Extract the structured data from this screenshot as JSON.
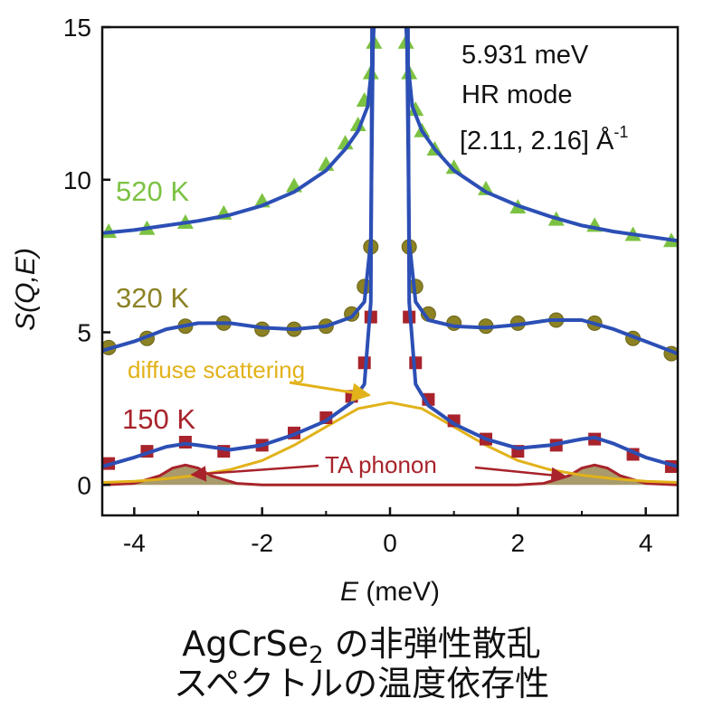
{
  "caption": {
    "line1_prefix": "AgCrSe",
    "line1_sub": "2",
    "line1_suffix": " の非弾性散乱",
    "line2": "スペクトルの温度依存性"
  },
  "chart_data": {
    "type": "scatter",
    "xlabel_italic": "E",
    "xlabel_unit": " (meV)",
    "ylabel": "S(Q,E)",
    "xlim": [
      -4.5,
      4.5
    ],
    "ylim": [
      -1,
      15
    ],
    "xticks": [
      -4,
      -2,
      0,
      2,
      4
    ],
    "yticks": [
      0,
      5,
      10,
      15
    ],
    "annotations": {
      "energy": "5.931 meV",
      "mode": "HR mode",
      "q_range": "[2.11, 2.16] Å",
      "q_exp": "-1",
      "diffuse": "diffuse scattering",
      "ta": "TA phonon"
    },
    "series": [
      {
        "name": "520 K",
        "color": "#7cc242",
        "marker": "triangle",
        "x": [
          -4.4,
          -3.8,
          -3.2,
          -2.6,
          -2.0,
          -1.5,
          -1.0,
          -0.7,
          -0.5,
          -0.4,
          -0.3,
          -0.25,
          0.25,
          0.3,
          0.4,
          0.5,
          0.7,
          1.0,
          1.5,
          2.0,
          2.6,
          3.2,
          3.8,
          4.4
        ],
        "y": [
          8.3,
          8.4,
          8.6,
          8.9,
          9.3,
          9.8,
          10.5,
          11.2,
          11.8,
          12.6,
          13.5,
          14.5,
          14.5,
          13.5,
          12.3,
          11.6,
          11.0,
          10.4,
          9.7,
          9.1,
          8.7,
          8.5,
          8.2,
          8.0
        ]
      },
      {
        "name": "320 K",
        "color": "#8c8224",
        "marker": "circle",
        "x": [
          -4.4,
          -3.8,
          -3.2,
          -2.6,
          -2.0,
          -1.5,
          -1.0,
          -0.6,
          -0.4,
          -0.3,
          0.3,
          0.4,
          0.6,
          1.0,
          1.5,
          2.0,
          2.6,
          3.2,
          3.8,
          4.4
        ],
        "y": [
          4.5,
          4.8,
          5.2,
          5.3,
          5.1,
          5.1,
          5.2,
          5.6,
          6.5,
          7.8,
          7.8,
          6.5,
          5.6,
          5.3,
          5.2,
          5.3,
          5.4,
          5.3,
          4.8,
          4.3
        ]
      },
      {
        "name": "150 K",
        "color": "#a8232b",
        "marker": "square",
        "x": [
          -4.4,
          -3.8,
          -3.2,
          -2.6,
          -2.0,
          -1.5,
          -1.0,
          -0.6,
          -0.4,
          -0.3,
          0.3,
          0.4,
          0.6,
          1.0,
          1.5,
          2.0,
          2.6,
          3.2,
          3.8,
          4.4
        ],
        "y": [
          0.7,
          1.1,
          1.4,
          1.1,
          1.3,
          1.7,
          2.2,
          2.9,
          4.0,
          5.5,
          5.5,
          4.0,
          2.8,
          2.1,
          1.5,
          1.1,
          1.3,
          1.5,
          1.0,
          0.6
        ]
      }
    ],
    "fits": [
      {
        "name": "520 K fit",
        "color": "#2c4fb5",
        "x": [
          -4.5,
          -4.0,
          -3.5,
          -3.0,
          -2.5,
          -2.0,
          -1.5,
          -1.0,
          -0.7,
          -0.5,
          -0.35,
          -0.28,
          -0.24,
          0.24,
          0.28,
          0.35,
          0.5,
          0.7,
          1.0,
          1.5,
          2.0,
          2.5,
          3.0,
          3.5,
          4.0,
          4.5
        ],
        "y": [
          8.25,
          8.35,
          8.5,
          8.65,
          8.85,
          9.15,
          9.6,
          10.3,
          11.0,
          11.6,
          12.4,
          13.8,
          15.5,
          15.5,
          13.8,
          12.4,
          11.6,
          11.0,
          10.3,
          9.6,
          9.15,
          8.8,
          8.5,
          8.3,
          8.15,
          8.0
        ]
      },
      {
        "name": "320 K fit",
        "color": "#2c4fb5",
        "x": [
          -4.5,
          -4.0,
          -3.5,
          -3.0,
          -2.5,
          -2.0,
          -1.5,
          -1.0,
          -0.6,
          -0.4,
          -0.3,
          -0.26,
          0.26,
          0.3,
          0.4,
          0.6,
          1.0,
          1.5,
          2.0,
          2.5,
          3.0,
          3.5,
          4.0,
          4.5
        ],
        "y": [
          4.4,
          4.7,
          5.1,
          5.3,
          5.3,
          5.15,
          5.1,
          5.2,
          5.5,
          6.0,
          8.0,
          15.5,
          15.5,
          8.0,
          6.0,
          5.4,
          5.2,
          5.15,
          5.25,
          5.4,
          5.4,
          5.1,
          4.7,
          4.3
        ]
      },
      {
        "name": "150 K fit",
        "color": "#2c4fb5",
        "x": [
          -4.5,
          -4.0,
          -3.5,
          -3.2,
          -3.0,
          -2.5,
          -2.0,
          -1.5,
          -1.0,
          -0.6,
          -0.4,
          -0.3,
          -0.28,
          0.28,
          0.3,
          0.4,
          0.6,
          1.0,
          1.5,
          2.0,
          2.5,
          3.0,
          3.2,
          3.5,
          4.0,
          4.5
        ],
        "y": [
          0.6,
          0.9,
          1.25,
          1.35,
          1.3,
          1.15,
          1.3,
          1.65,
          2.1,
          2.7,
          3.3,
          6.0,
          15.5,
          15.5,
          6.0,
          3.3,
          2.6,
          2.0,
          1.5,
          1.2,
          1.3,
          1.5,
          1.55,
          1.35,
          0.9,
          0.6
        ]
      }
    ],
    "diffuse_curve": {
      "name": "diffuse scattering",
      "color": "#e2b21a",
      "x": [
        -4.5,
        -4.0,
        -3.5,
        -3.0,
        -2.5,
        -2.0,
        -1.5,
        -1.0,
        -0.5,
        0.0,
        0.5,
        1.0,
        1.5,
        2.0,
        2.5,
        3.0,
        3.5,
        4.0,
        4.5
      ],
      "y": [
        0.08,
        0.12,
        0.2,
        0.32,
        0.5,
        0.8,
        1.3,
        1.9,
        2.5,
        2.7,
        2.5,
        1.9,
        1.3,
        0.8,
        0.5,
        0.32,
        0.2,
        0.12,
        0.08
      ]
    },
    "phonon_curve": {
      "name": "TA phonon",
      "color": "#a8232b",
      "fill": "#8c7a3a",
      "x": [
        -4.5,
        -4.0,
        -3.6,
        -3.4,
        -3.2,
        -3.0,
        -2.8,
        -2.4,
        -2.0,
        -1.0,
        0.0,
        1.0,
        2.0,
        2.4,
        2.8,
        3.0,
        3.2,
        3.4,
        3.6,
        4.0,
        4.5
      ],
      "y": [
        0.0,
        0.05,
        0.3,
        0.55,
        0.65,
        0.55,
        0.3,
        0.05,
        0.0,
        0.0,
        0.0,
        0.0,
        0.0,
        0.05,
        0.3,
        0.55,
        0.65,
        0.55,
        0.3,
        0.05,
        0.0
      ]
    }
  }
}
